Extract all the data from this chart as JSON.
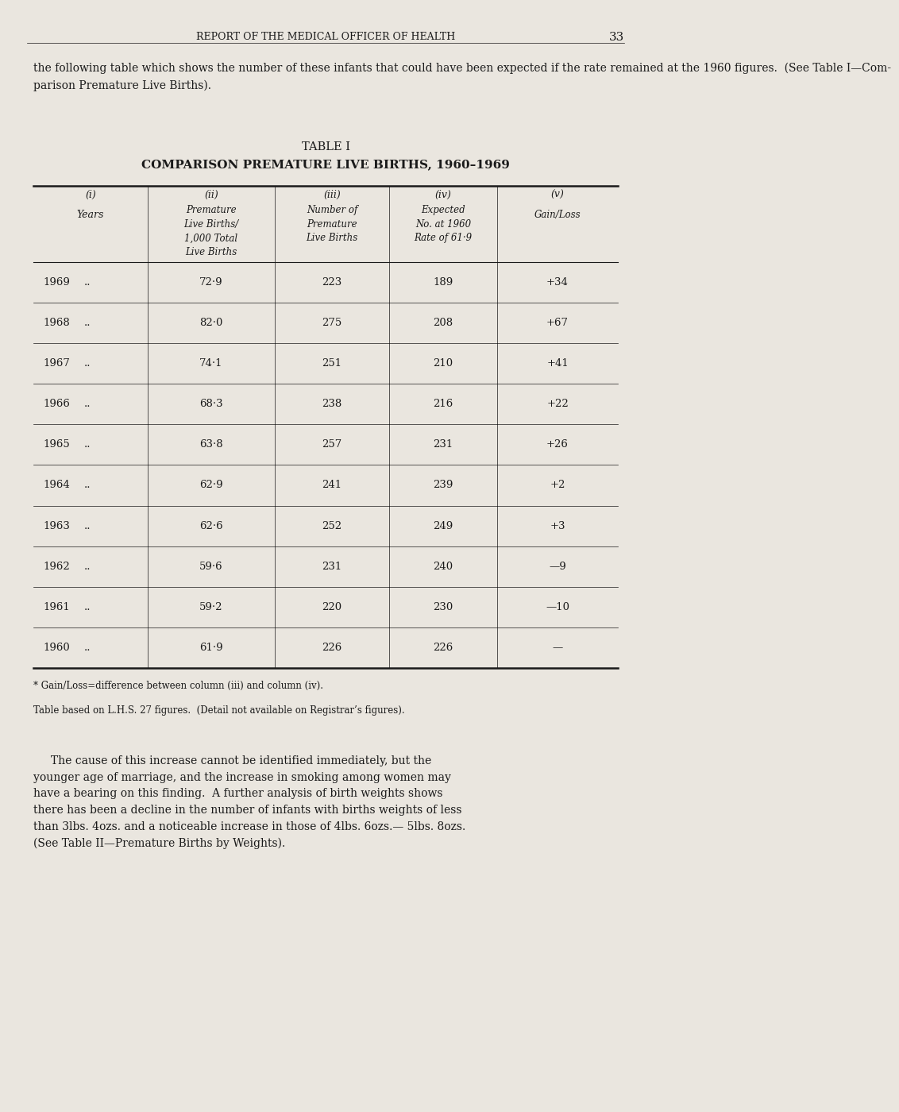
{
  "bg_color": "#eae6df",
  "page_title": "REPORT OF THE MEDICAL OFFICER OF HEALTH",
  "page_number": "33",
  "intro_text": "the following table which shows the number of these infants that could have been expected if the rate remained at the 1960 figures.  (See Table I—Com-\nparison Premature Live Births).",
  "table_title1": "TABLE I",
  "table_title2": "COMPARISON PREMATURE LIVE BIRTHS, 1960–1969",
  "rows": [
    [
      "1969",
      "..",
      "72·9",
      "223",
      "189",
      "+34"
    ],
    [
      "1968",
      "..",
      "82·0",
      "275",
      "208",
      "+67"
    ],
    [
      "1967",
      "..",
      "74·1",
      "251",
      "210",
      "+41"
    ],
    [
      "1966",
      "..",
      "68·3",
      "238",
      "216",
      "+22"
    ],
    [
      "1965",
      "..",
      "63·8",
      "257",
      "231",
      "+26"
    ],
    [
      "1964",
      "..",
      "62·9",
      "241",
      "239",
      "+2"
    ],
    [
      "1963",
      "..",
      "62·6",
      "252",
      "249",
      "+3"
    ],
    [
      "1962",
      "..",
      "59·6",
      "231",
      "240",
      "—9"
    ],
    [
      "1961",
      "..",
      "59·2",
      "220",
      "230",
      "—10"
    ],
    [
      "1960",
      "..",
      "61·9",
      "226",
      "226",
      "—"
    ]
  ],
  "footnote1": "* Gain/Loss=difference between column (iii) and column (iv).",
  "footnote2": "Table based on L.H.S. 27 figures.  (Detail not available on Registrar’s figures).",
  "body_text": "     The cause of this increase cannot be identified immediately, but the\nyounger age of marriage, and the increase in smoking among women may\nhave a bearing on this finding.  A further analysis of birth weights shows\nthere has been a decline in the number of infants with births weights of less\nthan 3lbs. 4ozs. and a noticeable increase in those of 4lbs. 6ozs.— 5lbs. 8ozs.\n(See Table II—Premature Births by Weights).",
  "font_color": "#1a1a1a",
  "body_font_size": 10,
  "table_title_font_size": 10.5,
  "bg_color_text": "#eae6df"
}
